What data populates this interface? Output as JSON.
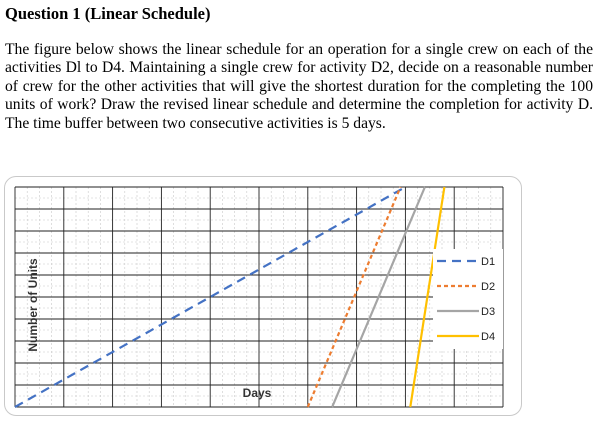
{
  "question": {
    "heading": "Question 1 (Linear Schedule)",
    "paragraph": "The figure below shows the linear schedule for an operation for a single crew on each of the activities Dl to D4.  Maintaining a single crew for activity D2, decide on a reasonable number of crew for the other activities that will give the shortest duration for the completing the 100 units of work?  Draw the revised linear schedule and determine the completion for activity D.  The time buffer between two consecutive activities is 5 days."
  },
  "chart_data": {
    "type": "line",
    "xlabel": "Days",
    "ylabel": "Number of Units",
    "grid": true,
    "legend_position": "right",
    "xlim": [
      0,
      100
    ],
    "ylim": [
      0,
      100
    ],
    "series": [
      {
        "name": "D1",
        "color": "#4472C4",
        "dash": "dash",
        "x": [
          0,
          80
        ],
        "y": [
          0,
          100
        ]
      },
      {
        "name": "D2",
        "color": "#ED7D31",
        "dash": "short-dash",
        "x": [
          60,
          79
        ],
        "y": [
          0,
          100
        ]
      },
      {
        "name": "D3",
        "color": "#A5A5A5",
        "dash": "solid",
        "x": [
          65,
          84
        ],
        "y": [
          0,
          100
        ]
      },
      {
        "name": "D4",
        "color": "#FFC000",
        "dash": "solid",
        "x": [
          81,
          88
        ],
        "y": [
          0,
          100
        ]
      }
    ]
  }
}
